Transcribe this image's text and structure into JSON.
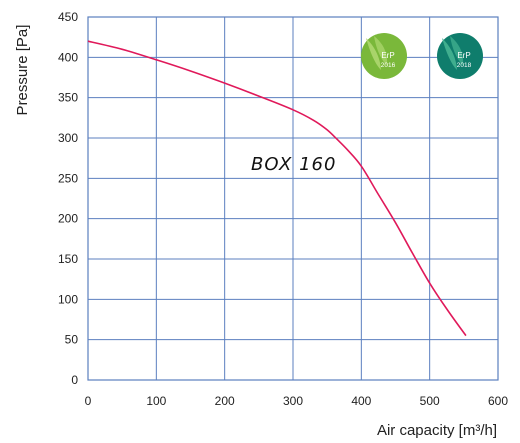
{
  "chart_data": {
    "type": "line",
    "xlabel": "Air capacity [m³/h]",
    "ylabel": "Pressure [Pa]",
    "xlim": [
      0,
      600
    ],
    "ylim": [
      0,
      450
    ],
    "x_ticks": [
      0,
      100,
      200,
      300,
      400,
      500,
      600
    ],
    "y_ticks": [
      0,
      50,
      100,
      150,
      200,
      250,
      300,
      350,
      400,
      450
    ],
    "grid": true,
    "series": [
      {
        "name": "BOX 160",
        "color": "#e0195a",
        "x": [
          0,
          50,
          100,
          150,
          200,
          250,
          300,
          330,
          350,
          365,
          380,
          400,
          425,
          450,
          475,
          500,
          525,
          553
        ],
        "y": [
          420,
          410,
          397,
          383,
          368,
          352,
          335,
          322,
          310,
          298,
          285,
          265,
          230,
          195,
          157,
          120,
          88,
          55
        ]
      }
    ]
  },
  "badges": [
    {
      "line1": "ErP",
      "line2": "2016",
      "color": "#7ab83a",
      "leaf_color": "#a9d46a",
      "icon": "erp-2016-leaf-icon"
    },
    {
      "line1": "ErP",
      "line2": "2018",
      "color": "#0f7d6c",
      "leaf_color": "#3fae8e",
      "icon": "erp-2018-leaf-icon"
    }
  ]
}
